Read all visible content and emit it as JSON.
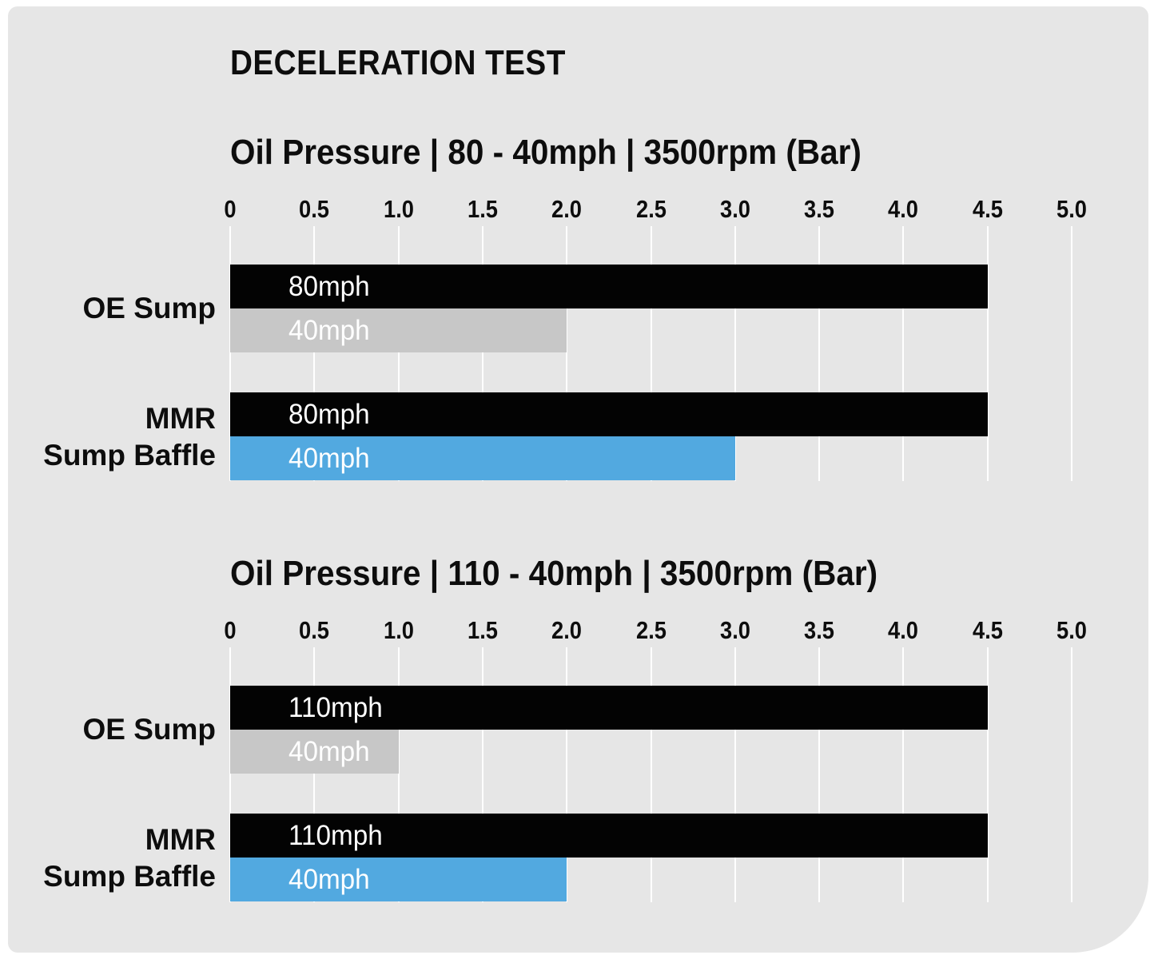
{
  "page": {
    "title": "DECELERATION TEST"
  },
  "colors": {
    "page_bg": "#ffffff",
    "card_bg": "#e6e6e6",
    "bar_black": "#030303",
    "bar_gray": "#c7c7c7",
    "bar_blue": "#52a9e0",
    "gridline": "#ffffff",
    "bar_label_text": "#ffffff",
    "heading_text": "#0d0d0d"
  },
  "axis": {
    "min": 0,
    "max": 5,
    "ticks": [
      "0",
      "0.5",
      "1.0",
      "1.5",
      "2.0",
      "2.5",
      "3.0",
      "3.5",
      "4.0",
      "4.5",
      "5.0"
    ]
  },
  "chart_data": [
    {
      "type": "bar",
      "orientation": "horizontal",
      "title": "Oil Pressure | 80 - 40mph | 3500rpm (Bar)",
      "categories": [
        "OE Sump",
        "MMR Sump Baffle"
      ],
      "category_lines": [
        [
          "OE Sump"
        ],
        [
          "MMR",
          "Sump Baffle"
        ]
      ],
      "xlabel": "",
      "ylabel": "",
      "xlim": [
        0,
        5
      ],
      "xticks": [
        0,
        0.5,
        1.0,
        1.5,
        2.0,
        2.5,
        3.0,
        3.5,
        4.0,
        4.5,
        5.0
      ],
      "grid": true,
      "legend": "labels-on-bars",
      "series": [
        {
          "name": "80mph",
          "values": [
            4.5,
            4.5
          ],
          "color_keys": [
            "bar_black",
            "bar_black"
          ]
        },
        {
          "name": "40mph",
          "values": [
            2.0,
            3.0
          ],
          "color_keys": [
            "bar_gray",
            "bar_blue"
          ]
        }
      ]
    },
    {
      "type": "bar",
      "orientation": "horizontal",
      "title": "Oil Pressure | 110 - 40mph | 3500rpm (Bar)",
      "categories": [
        "OE Sump",
        "MMR Sump Baffle"
      ],
      "category_lines": [
        [
          "OE Sump"
        ],
        [
          "MMR",
          "Sump Baffle"
        ]
      ],
      "xlabel": "",
      "ylabel": "",
      "xlim": [
        0,
        5
      ],
      "xticks": [
        0,
        0.5,
        1.0,
        1.5,
        2.0,
        2.5,
        3.0,
        3.5,
        4.0,
        4.5,
        5.0
      ],
      "grid": true,
      "legend": "labels-on-bars",
      "series": [
        {
          "name": "110mph",
          "values": [
            4.5,
            4.5
          ],
          "color_keys": [
            "bar_black",
            "bar_black"
          ]
        },
        {
          "name": "40mph",
          "values": [
            1.0,
            2.0
          ],
          "color_keys": [
            "bar_gray",
            "bar_blue"
          ]
        }
      ]
    }
  ]
}
